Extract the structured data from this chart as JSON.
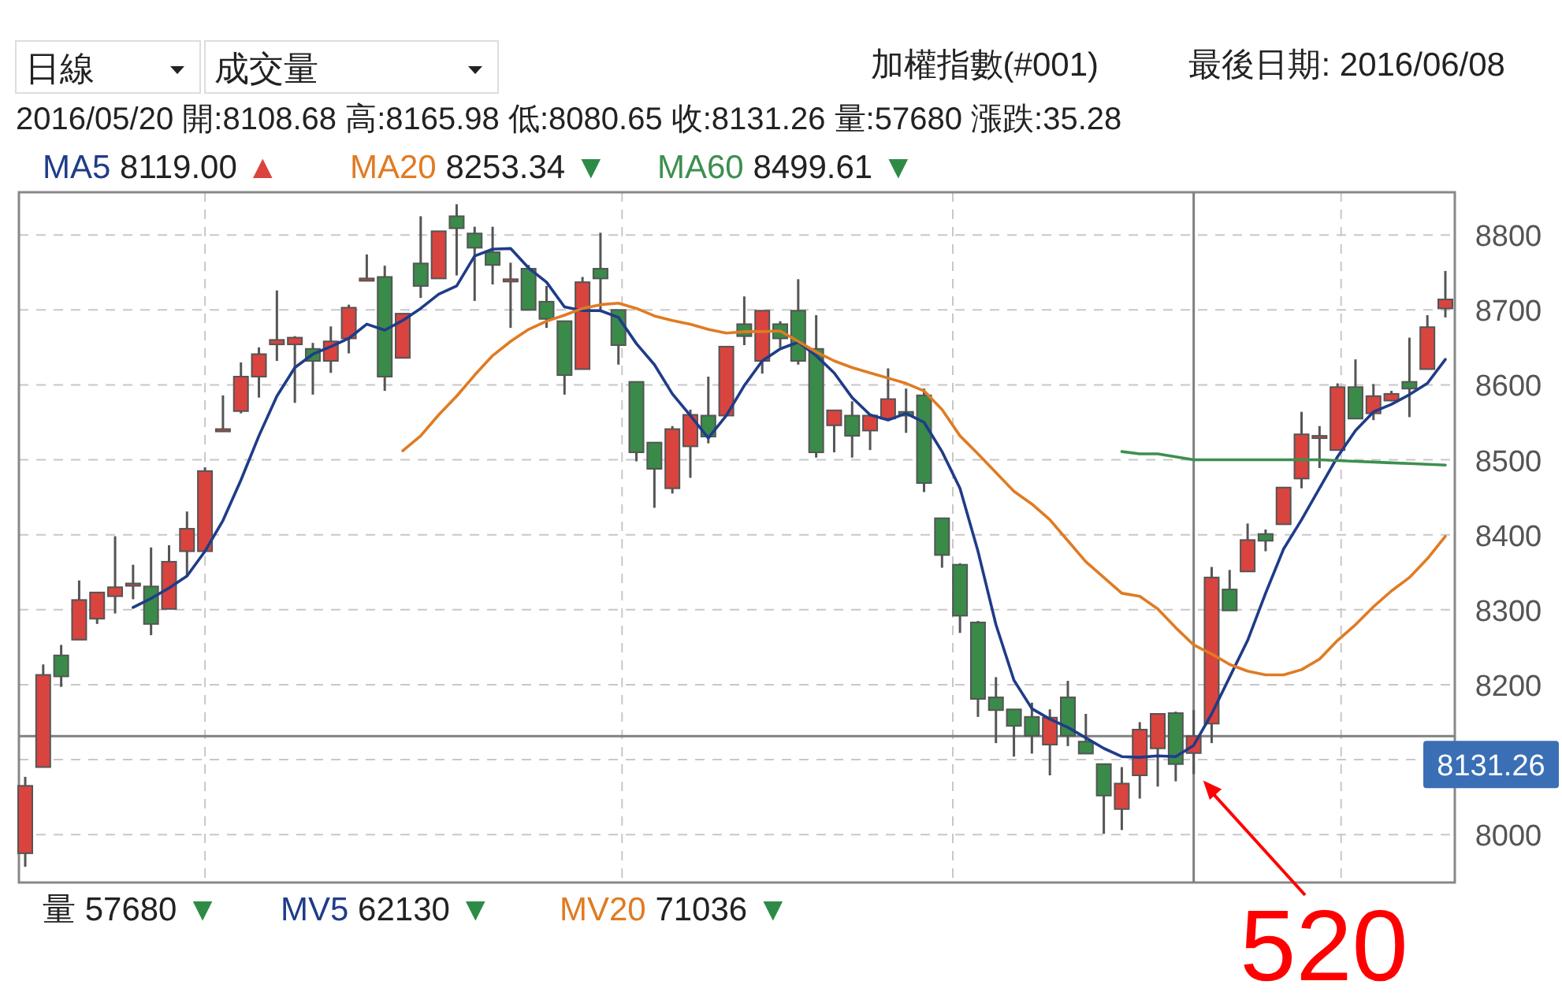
{
  "chart_data": {
    "type": "candlestick",
    "title": "加權指數(#001)",
    "subtitle": "最後日期: 2016/06/08",
    "categories": [
      null,
      null,
      null,
      null,
      null,
      null,
      null,
      null,
      null,
      null,
      null,
      null,
      null,
      null,
      null,
      null,
      null,
      null,
      null,
      null,
      null,
      null,
      null,
      null,
      null,
      null,
      null,
      null,
      null,
      null,
      null,
      null,
      null,
      null,
      null,
      null,
      null,
      null,
      null,
      null,
      null,
      null,
      null,
      null,
      null,
      null,
      null,
      null,
      null,
      null,
      null,
      null,
      null,
      null,
      null,
      null,
      null,
      null,
      null,
      null,
      null,
      null,
      null,
      null,
      null,
      null,
      null,
      null,
      null,
      null,
      null,
      null,
      null,
      null,
      null,
      null,
      null,
      null,
      null,
      null
    ],
    "ohlc": [
      [
        7975,
        8077,
        7957,
        8065
      ],
      [
        8090,
        8227,
        8090,
        8213
      ],
      [
        8239,
        8253,
        8197,
        8211
      ],
      [
        8260,
        8339,
        8260,
        8313
      ],
      [
        8288,
        8323,
        8281,
        8323
      ],
      [
        8318,
        8398,
        8295,
        8330
      ],
      [
        8334,
        8360,
        8314,
        8335
      ],
      [
        8331,
        8383,
        8266,
        8281
      ],
      [
        8301,
        8386,
        8301,
        8364
      ],
      [
        8378,
        8431,
        8346,
        8408
      ],
      [
        8378,
        8490,
        8378,
        8485
      ],
      [
        8540,
        8586,
        8540,
        8541
      ],
      [
        8565,
        8630,
        8562,
        8611
      ],
      [
        8611,
        8650,
        8583,
        8641
      ],
      [
        8654,
        8726,
        8632,
        8660
      ],
      [
        8654,
        8665,
        8576,
        8663
      ],
      [
        8648,
        8656,
        8587,
        8632
      ],
      [
        8632,
        8678,
        8616,
        8658
      ],
      [
        8662,
        8707,
        8642,
        8703
      ],
      [
        8741,
        8774,
        8740,
        8742
      ],
      [
        8744,
        8759,
        8592,
        8611
      ],
      [
        8636,
        8695,
        8636,
        8695
      ],
      [
        8762,
        8825,
        8716,
        8732
      ],
      [
        8742,
        8805,
        8742,
        8805
      ],
      [
        8825,
        8841,
        8746,
        8809
      ],
      [
        8802,
        8811,
        8712,
        8783
      ],
      [
        8777,
        8811,
        8734,
        8760
      ],
      [
        8740,
        8763,
        8676,
        8741
      ],
      [
        8755,
        8760,
        8700,
        8700
      ],
      [
        8711,
        8732,
        8676,
        8688
      ],
      [
        8685,
        8685,
        8587,
        8613
      ],
      [
        8621,
        8744,
        8621,
        8737
      ],
      [
        8755,
        8803,
        8697,
        8742
      ],
      [
        8700,
        8700,
        8627,
        8653
      ],
      [
        8604,
        8604,
        8498,
        8510
      ],
      [
        8523,
        8523,
        8436,
        8488
      ],
      [
        8462,
        8545,
        8455,
        8541
      ],
      [
        8518,
        8567,
        8476,
        8560
      ],
      [
        8559,
        8611,
        8522,
        8531
      ],
      [
        8559,
        8651,
        8559,
        8651
      ],
      [
        8681,
        8718,
        8653,
        8665
      ],
      [
        8632,
        8699,
        8615,
        8699
      ],
      [
        8681,
        8685,
        8650,
        8662
      ],
      [
        8699,
        8741,
        8627,
        8632
      ],
      [
        8648,
        8693,
        8503,
        8510
      ],
      [
        8546,
        8566,
        8510,
        8566
      ],
      [
        8559,
        8578,
        8503,
        8532
      ],
      [
        8539,
        8559,
        8513,
        8559
      ],
      [
        8555,
        8622,
        8555,
        8581
      ],
      [
        8564,
        8595,
        8536,
        8559
      ],
      [
        8586,
        8595,
        8457,
        8469
      ],
      [
        8422,
        8422,
        8356,
        8373
      ],
      [
        8360,
        8362,
        8269,
        8292
      ],
      [
        8283,
        8285,
        8157,
        8181
      ],
      [
        8183,
        8210,
        8122,
        8166
      ],
      [
        8167,
        8167,
        8104,
        8145
      ],
      [
        8157,
        8176,
        8108,
        8132
      ],
      [
        8120,
        8167,
        8079,
        8156
      ],
      [
        8183,
        8205,
        8118,
        8132
      ],
      [
        8124,
        8161,
        8108,
        8108
      ],
      [
        8094,
        8094,
        8001,
        8052
      ],
      [
        8034,
        8090,
        8006,
        8068
      ],
      [
        8079,
        8150,
        8048,
        8140
      ],
      [
        8115,
        8161,
        8064,
        8161
      ],
      [
        8162,
        8164,
        8071,
        8094
      ],
      [
        8108.68,
        8165.98,
        8080.65,
        8131.26
      ],
      [
        8148,
        8357,
        8122,
        8343
      ],
      [
        8327,
        8353,
        8299,
        8299
      ],
      [
        8351,
        8415,
        8351,
        8393
      ],
      [
        8401,
        8407,
        8378,
        8392
      ],
      [
        8414,
        8463,
        8414,
        8463
      ],
      [
        8475,
        8564,
        8462,
        8534
      ],
      [
        8531,
        8545,
        8489,
        8532
      ],
      [
        8513,
        8602,
        8513,
        8597
      ],
      [
        8597,
        8634,
        8555,
        8555
      ],
      [
        8562,
        8601,
        8553,
        8585
      ],
      [
        8579,
        8592,
        8578,
        8588
      ],
      [
        8604,
        8663,
        8557,
        8595
      ],
      [
        8621,
        8693,
        8621,
        8677
      ],
      [
        8702,
        8752,
        8690,
        8714
      ]
    ],
    "series": [
      {
        "name": "MA5",
        "type": "line",
        "color": "#1f3c88",
        "values": [
          null,
          null,
          null,
          null,
          null,
          null,
          8303,
          8315,
          8329,
          8345,
          8378,
          8419,
          8473,
          8532,
          8585,
          8623,
          8641,
          8651,
          8662,
          8681,
          8673,
          8686,
          8702,
          8721,
          8732,
          8772,
          8781,
          8782,
          8756,
          8737,
          8704,
          8699,
          8699,
          8690,
          8655,
          8627,
          8588,
          8559,
          8529,
          8559,
          8599,
          8632,
          8648,
          8657,
          8639,
          8616,
          8583,
          8560,
          8553,
          8562,
          8550,
          8511,
          8462,
          8378,
          8280,
          8206,
          8168,
          8154,
          8143,
          8129,
          8115,
          8104,
          8103,
          8105,
          8104,
          8119,
          8161,
          8210,
          8259,
          8322,
          8381,
          8420,
          8462,
          8504,
          8539,
          8564,
          8574,
          8587,
          8602,
          8634
        ]
      },
      {
        "name": "MA20",
        "type": "line",
        "color": "#e07b22",
        "values": [
          null,
          null,
          null,
          null,
          null,
          null,
          null,
          null,
          null,
          null,
          null,
          null,
          null,
          null,
          null,
          null,
          null,
          null,
          null,
          null,
          null,
          8512,
          8532,
          8560,
          8585,
          8613,
          8639,
          8658,
          8674,
          8685,
          8693,
          8702,
          8707,
          8709,
          8702,
          8692,
          8686,
          8681,
          8674,
          8669,
          8671,
          8671,
          8672,
          8658,
          8644,
          8632,
          8623,
          8616,
          8609,
          8602,
          8592,
          8567,
          8532,
          8508,
          8483,
          8458,
          8441,
          8420,
          8392,
          8364,
          8343,
          8322,
          8318,
          8301,
          8276,
          8253,
          8241,
          8227,
          8218,
          8213,
          8213,
          8220,
          8234,
          8259,
          8280,
          8304,
          8325,
          8343,
          8368,
          8398
        ]
      },
      {
        "name": "MA60",
        "type": "line",
        "color": "#3d8f4f",
        "values": [
          null,
          null,
          null,
          null,
          null,
          null,
          null,
          null,
          null,
          null,
          null,
          null,
          null,
          null,
          null,
          null,
          null,
          null,
          null,
          null,
          null,
          null,
          null,
          null,
          null,
          null,
          null,
          null,
          null,
          null,
          null,
          null,
          null,
          null,
          null,
          null,
          null,
          null,
          null,
          null,
          null,
          null,
          null,
          null,
          null,
          null,
          null,
          null,
          null,
          null,
          null,
          null,
          null,
          null,
          null,
          null,
          null,
          null,
          null,
          null,
          null,
          8511,
          8508,
          8508,
          8504,
          8500,
          8500,
          8500,
          8500,
          8500,
          8500,
          8500,
          8500,
          8499,
          8498,
          8497,
          8496,
          8495,
          8494,
          8493
        ]
      }
    ],
    "ylim": [
      7936,
      8857
    ],
    "yticks": [
      8000,
      {
        "value": 8100,
        "label": null
      },
      8200,
      8300,
      8400,
      8500,
      8600,
      8700,
      8800
    ],
    "grid": true,
    "legend": "top",
    "marker": "none",
    "line_style": "solid",
    "ref_lines": [
      {
        "axis": "y",
        "value": 8131.26,
        "label": "8131.26",
        "color": "#808080"
      }
    ],
    "annotations": [
      "日線",
      "成交量",
      "2016/05/20  開:8108.68  高:8165.98  低:8080.65  收:8131.26  量:57680  漲跌:35.28",
      "8119.00 ▲",
      "8253.34 ▼",
      "8499.61 ▼",
      "量 57680 ▼",
      "MV5",
      "62130 ▼",
      "MV20",
      "71036 ▼",
      "520"
    ]
  }
}
